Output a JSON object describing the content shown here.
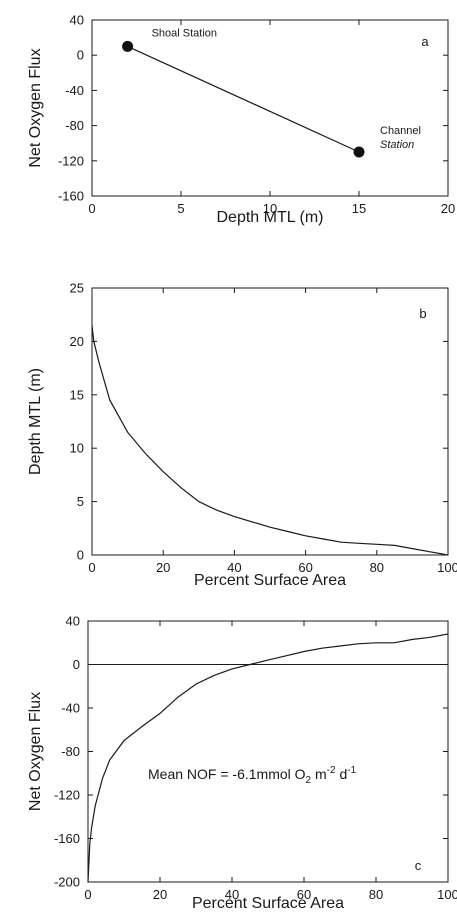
{
  "chart_data": [
    {
      "panel": "a",
      "type": "line",
      "xlabel": "Depth MTL (m)",
      "ylabel": "Net Oxygen Flux",
      "xlim": [
        0,
        20
      ],
      "ylim": [
        -160,
        40
      ],
      "xticks": [
        0,
        5,
        10,
        15,
        20
      ],
      "yticks": [
        40,
        0,
        -40,
        -80,
        -120,
        -160
      ],
      "series": [
        {
          "x": [
            2,
            15
          ],
          "y": [
            10,
            -110
          ]
        }
      ],
      "annotations": [
        "Shoal Station",
        "Channel",
        "Station"
      ]
    },
    {
      "panel": "b",
      "type": "line",
      "xlabel": "Percent Surface Area",
      "ylabel": "Depth MTL (m)",
      "xlim": [
        0,
        100
      ],
      "ylim": [
        0,
        25
      ],
      "xticks": [
        0,
        20,
        40,
        60,
        80,
        100
      ],
      "yticks": [
        25,
        20,
        15,
        10,
        5,
        0
      ],
      "series": [
        {
          "x": [
            0,
            0.5,
            2,
            5,
            10,
            15,
            20,
            25,
            30,
            35,
            40,
            45,
            50,
            55,
            60,
            65,
            70,
            75,
            80,
            85,
            90,
            95,
            100
          ],
          "y": [
            21.5,
            20,
            18,
            14.5,
            11.5,
            9.5,
            7.8,
            6.3,
            5,
            4.2,
            3.6,
            3.1,
            2.6,
            2.2,
            1.8,
            1.5,
            1.2,
            1.1,
            1.0,
            0.9,
            0.6,
            0.3,
            0
          ]
        }
      ]
    },
    {
      "panel": "c",
      "type": "line",
      "xlabel": "Percent Surface Area",
      "ylabel": "Net Oxygen Flux",
      "xlim": [
        0,
        100
      ],
      "ylim": [
        -200,
        40
      ],
      "xticks": [
        0,
        20,
        40,
        60,
        80,
        100
      ],
      "yticks": [
        40,
        0,
        -40,
        -80,
        -120,
        -160,
        -200
      ],
      "series": [
        {
          "x": [
            0,
            0.5,
            1,
            2,
            4,
            6,
            10,
            15,
            20,
            25,
            30,
            35,
            40,
            45,
            50,
            55,
            60,
            65,
            70,
            75,
            80,
            85,
            90,
            95,
            100
          ],
          "y": [
            -200,
            -165,
            -150,
            -130,
            -105,
            -88,
            -70,
            -57,
            -45,
            -30,
            -18,
            -10,
            -4,
            0,
            4,
            8,
            12,
            15,
            17,
            19,
            20,
            20,
            23,
            25,
            28
          ]
        }
      ],
      "annotation": {
        "prefix": "Mean NOF = -6.1mmol O",
        "sub1": "2",
        "mid": " m",
        "sup": "-2",
        "tail": " d",
        "sup2": "-1"
      }
    }
  ]
}
